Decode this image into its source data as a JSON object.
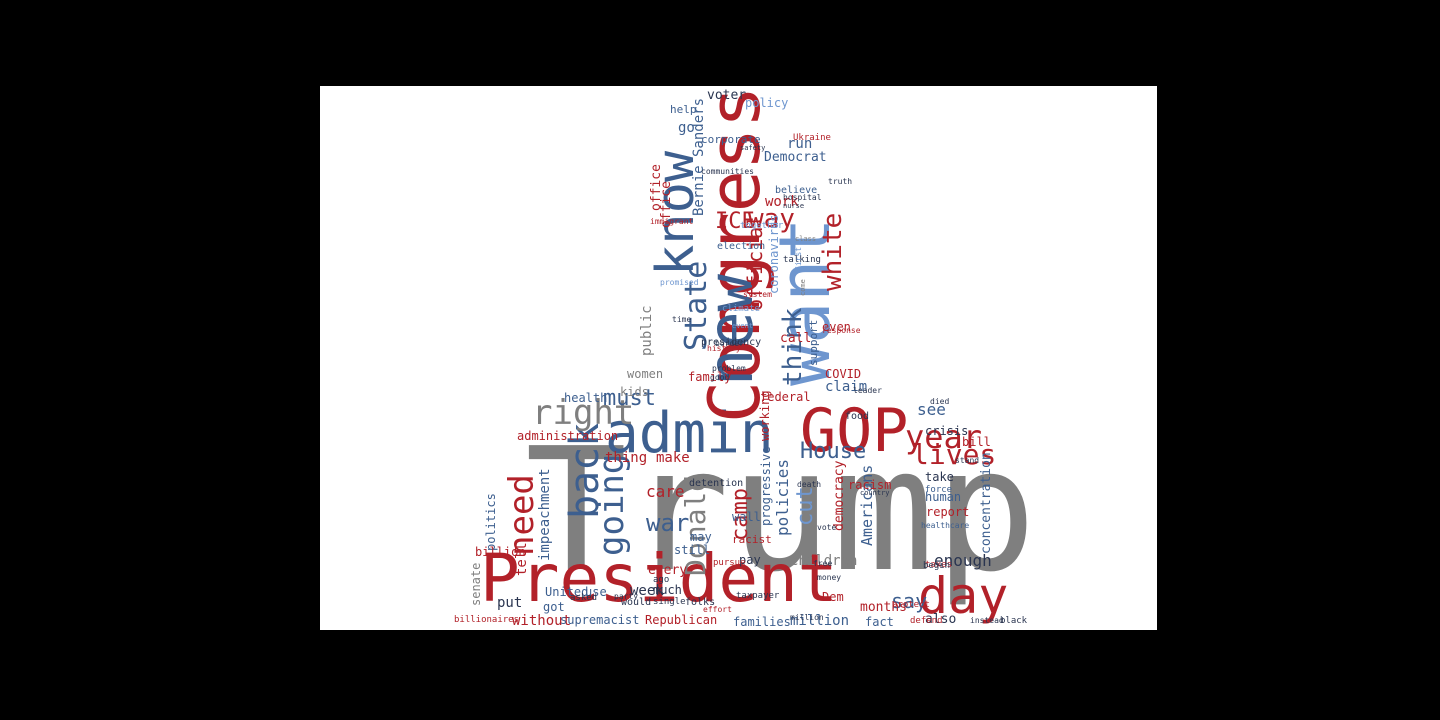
{
  "colors": {
    "background": "#000000",
    "canvas": "#ffffff",
    "red": "#b22129",
    "gray": "#7f7f7f",
    "slate": "#3d5f8f",
    "lightblue": "#6e96cf",
    "navy": "#2a3550"
  },
  "words": [
    "Trump",
    "President",
    "admin",
    "GOP",
    "Congress",
    "know",
    "want",
    "new",
    "day",
    "year",
    "back",
    "going",
    "need",
    "right",
    "white",
    "official",
    "way",
    "State",
    "think",
    "lives",
    "House",
    "war",
    "Donald",
    "camp",
    "say",
    "must",
    "claim",
    "enough",
    "children",
    "work",
    "cut",
    "policies",
    "care",
    "thing",
    "make",
    "impeachment",
    "Americans",
    "ICE",
    "Bernie Sanders",
    "public",
    "Democrat",
    "voter",
    "policy",
    "go",
    "run",
    "help",
    "concentration",
    "United",
    "use",
    "week",
    "million",
    "without",
    "supremacist",
    "Republican",
    "families",
    "also",
    "fact",
    "months",
    "Dem",
    "put",
    "senate",
    "politics",
    "billion",
    "women",
    "kids",
    "health",
    "administration",
    "see",
    "crisis",
    "bill",
    "report",
    "human",
    "pay",
    "even",
    "call",
    "support",
    "coronavirus",
    "election",
    "presidency",
    "every",
    "much",
    "would",
    "got",
    "tell",
    "may",
    "still",
    "wall",
    "racist",
    "progressive",
    "democracy",
    "federal",
    "family",
    "COVID",
    "racism",
    "working",
    "believe",
    "office",
    "office",
    "system",
    "good",
    "problem",
    "history",
    "border",
    "take",
    "taxes",
    "healthcare",
    "force",
    "stand",
    "begin",
    "died",
    "food",
    "black",
    "million",
    "protect",
    "defend",
    "instead",
    "billionaires",
    "Ukraine",
    "truth",
    "together",
    "talking",
    "climate",
    "class",
    "event",
    "response",
    "first",
    "come",
    "time",
    "leader",
    "money",
    "vote",
    "free",
    "death",
    "country",
    "detention",
    "pursue",
    "ago",
    "effort",
    "folks",
    "single",
    "hospital",
    "nurse",
    "promised",
    "immigrant",
    "corporate",
    "communities",
    "safety",
    "party",
    "asked",
    "taxpayer"
  ]
}
